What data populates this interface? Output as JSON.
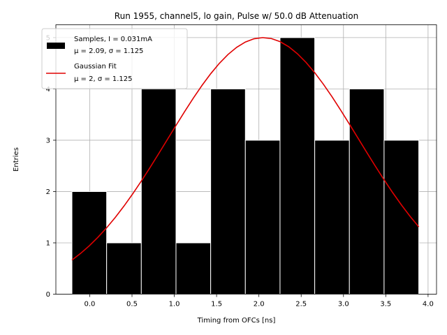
{
  "chart_data": {
    "type": "bar",
    "title": "Run 1955, channel5, lo gain, Pulse w/ 50.0 dB Attenuation",
    "xlabel": "Timing from OFCs [ns]",
    "ylabel": "Entries",
    "xlim": [
      -0.4,
      4.1
    ],
    "ylim": [
      0,
      5.25
    ],
    "xticks": [
      0.0,
      0.5,
      1.0,
      1.5,
      2.0,
      2.5,
      3.0,
      3.5,
      4.0
    ],
    "xtick_labels": [
      "0.0",
      "0.5",
      "1.0",
      "1.5",
      "2.0",
      "2.5",
      "3.0",
      "3.5",
      "4.0"
    ],
    "yticks": [
      0,
      1,
      2,
      3,
      4,
      5
    ],
    "ytick_labels": [
      "0",
      "1",
      "2",
      "3",
      "4",
      "5"
    ],
    "grid": true,
    "legend_position": "top-left",
    "histogram": {
      "name": "Samples",
      "color": "#000000",
      "edge_color": "#ffffff",
      "bin_edges": [
        -0.21,
        0.2,
        0.61,
        1.02,
        1.43,
        1.84,
        2.25,
        2.66,
        3.07,
        3.48,
        3.89
      ],
      "counts": [
        2,
        1,
        4,
        1,
        4,
        3,
        5,
        3,
        4,
        3
      ]
    },
    "fit": {
      "name": "Gaussian Fit",
      "color": "#e00000",
      "type": "gaussian",
      "amplitude": 5.0,
      "mean": 2.05,
      "sigma": 1.125,
      "x_range": [
        -0.21,
        3.89
      ]
    },
    "legend": [
      {
        "line1": "Samples, I = 0.031mA",
        "line2": "μ = 2.09, σ = 1.125",
        "kind": "patch"
      },
      {
        "line1": "Gaussian Fit",
        "line2": "μ = 2, σ = 1.125",
        "kind": "line"
      }
    ]
  }
}
